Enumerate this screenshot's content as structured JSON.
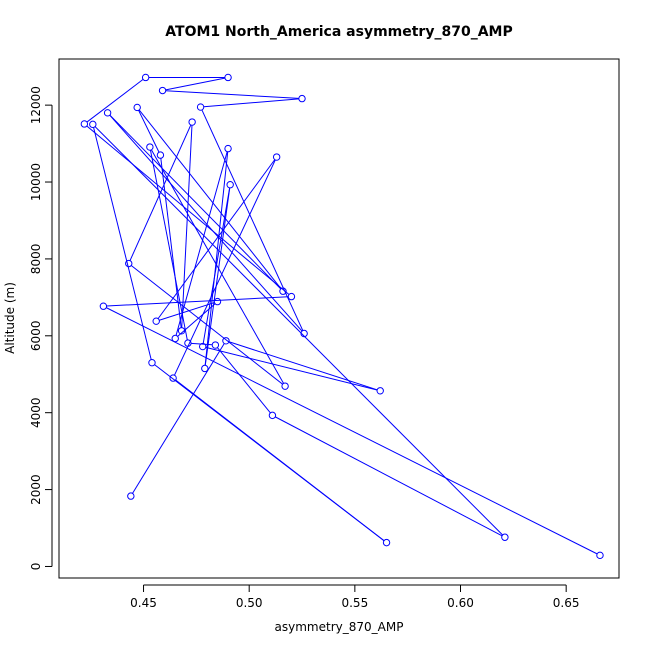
{
  "chart_data": {
    "type": "line",
    "title": "ATOM1 North_America asymmetry_870_AMP",
    "xlabel": "asymmetry_870_AMP",
    "ylabel": "Altitude (m)",
    "xlim": [
      0.41,
      0.675
    ],
    "ylim": [
      -300,
      13200
    ],
    "xticks": [
      0.45,
      0.5,
      0.55,
      0.6,
      0.65
    ],
    "xtick_labels": [
      "0.45",
      "0.50",
      "0.55",
      "0.60",
      "0.65"
    ],
    "yticks": [
      0,
      2000,
      4000,
      6000,
      8000,
      10000,
      12000
    ],
    "ytick_labels": [
      "0",
      "2000",
      "4000",
      "6000",
      "8000",
      "10000",
      "12000"
    ],
    "grid": false,
    "series": [
      {
        "name": "asymmetry_870_AMP",
        "color": "#0000ff",
        "marker": "open-circle",
        "x": [
          0.666,
          0.431,
          0.52,
          0.422,
          0.451,
          0.49,
          0.459,
          0.525,
          0.477,
          0.526,
          0.433,
          0.516,
          0.447,
          0.458,
          0.468,
          0.473,
          0.443,
          0.517,
          0.453,
          0.471,
          0.484,
          0.511,
          0.621,
          0.426,
          0.454,
          0.565,
          0.464,
          0.513,
          0.456,
          0.485,
          0.465,
          0.49,
          0.479,
          0.491,
          0.478,
          0.562,
          0.489,
          0.444
        ],
        "y": [
          290,
          6770,
          7020,
          11510,
          12720,
          12720,
          12380,
          12170,
          11950,
          6060,
          11800,
          7160,
          11940,
          10700,
          6130,
          11560,
          7880,
          4690,
          10910,
          5810,
          5760,
          3930,
          760,
          11500,
          5300,
          620,
          4900,
          10650,
          6380,
          6890,
          5930,
          10870,
          5150,
          9930,
          5720,
          4570,
          5870,
          1830
        ]
      }
    ]
  }
}
